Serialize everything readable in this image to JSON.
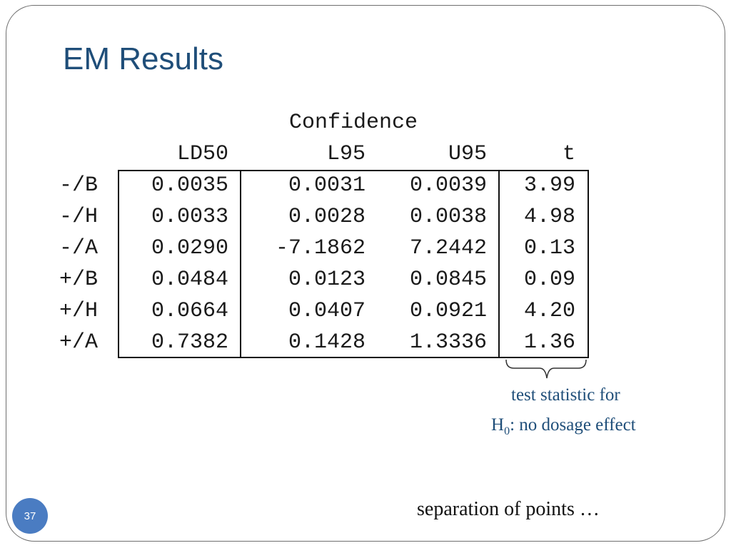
{
  "slide": {
    "title": "EM Results",
    "page_number": "37",
    "footer_text": "separation of points …"
  },
  "table": {
    "group_header": "Confidence",
    "columns": [
      "LD50",
      "L95",
      "U95",
      "t"
    ],
    "rows": [
      {
        "label": "-/B",
        "ld50": "0.0035",
        "l95": "0.0031",
        "u95": "0.0039",
        "t": "3.99"
      },
      {
        "label": "-/H",
        "ld50": "0.0033",
        "l95": "0.0028",
        "u95": "0.0038",
        "t": "4.98"
      },
      {
        "label": "-/A",
        "ld50": "0.0290",
        "l95": "-7.1862",
        "u95": "7.2442",
        "t": "0.13"
      },
      {
        "label": "+/B",
        "ld50": "0.0484",
        "l95": "0.0123",
        "u95": "0.0845",
        "t": "0.09"
      },
      {
        "label": "+/H",
        "ld50": "0.0664",
        "l95": "0.0407",
        "u95": "0.0921",
        "t": "4.20"
      },
      {
        "label": "+/A",
        "ld50": "0.7382",
        "l95": "0.1428",
        "u95": "1.3336",
        "t": "1.36"
      }
    ]
  },
  "annotation": {
    "line1": "test statistic for",
    "line2_prefix": "H",
    "line2_subscript": "0",
    "line2_suffix": ": no dosage effect"
  }
}
